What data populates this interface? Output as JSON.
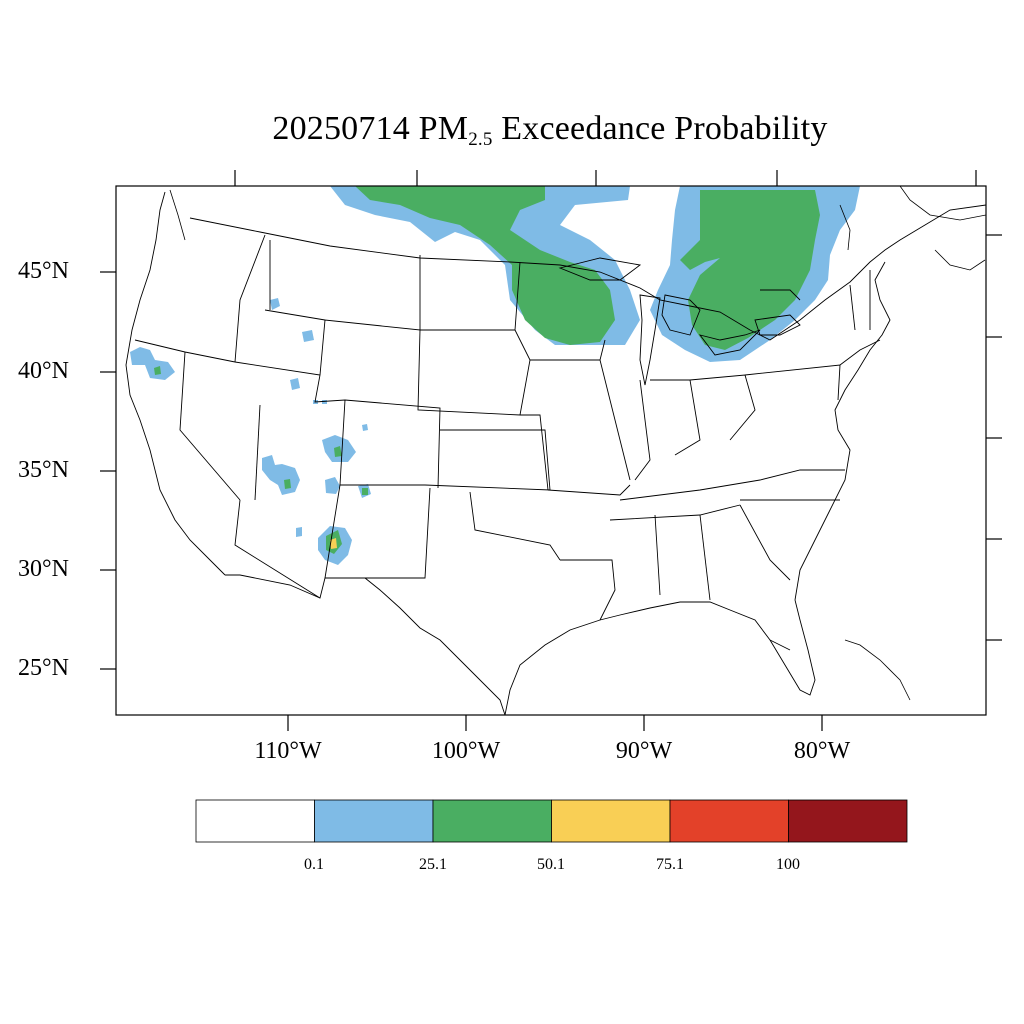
{
  "title": {
    "prefix": "20250714 PM",
    "subscript": "2.5",
    "suffix": " Exceedance Probability"
  },
  "map": {
    "lat_labels": [
      "45°N",
      "40°N",
      "35°N",
      "30°N",
      "25°N"
    ],
    "lon_labels": [
      "110°W",
      "100°W",
      "90°W",
      "80°W"
    ]
  },
  "colorbar": {
    "labels": [
      "0.1",
      "25.1",
      "50.1",
      "75.1",
      "100"
    ],
    "colors": [
      "#ffffff",
      "#7fbbe6",
      "#4aae62",
      "#f9cf55",
      "#e34129",
      "#94161c"
    ]
  },
  "colors": {
    "light_blue": "#7fbbe6",
    "green": "#4aae62",
    "yellow": "#f9cf55"
  }
}
